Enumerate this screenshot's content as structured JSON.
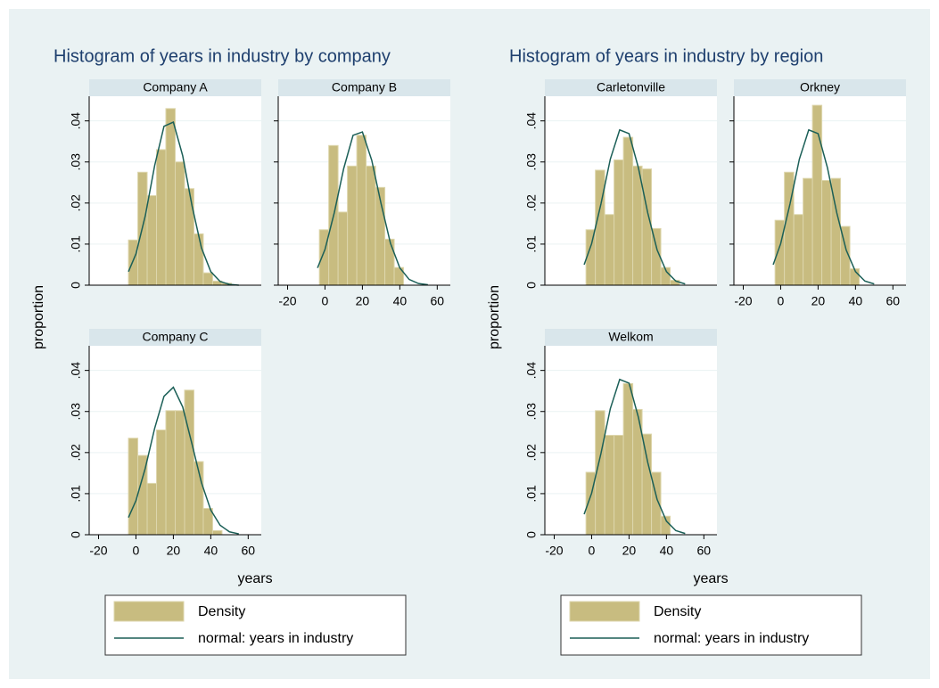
{
  "chart_data": [
    {
      "type": "histogram",
      "title": "Histogram of years in industry by company",
      "xlabel": "years",
      "ylabel": "proportion",
      "legend": [
        "Density",
        "normal: years in industry"
      ],
      "bar_color": "#c8bc80",
      "line_color": "#1b5f57",
      "xlim": [
        -25,
        67
      ],
      "ylim": [
        0,
        0.046
      ],
      "xticks": [
        -20,
        0,
        20,
        40,
        60
      ],
      "yticks": [
        0,
        {
          "value": 0.01,
          "label": ".01"
        },
        {
          "value": 0.02,
          "label": ".02"
        },
        {
          "value": 0.03,
          "label": ".03"
        },
        {
          "value": 0.04,
          "label": ".04"
        }
      ],
      "grid": true,
      "panels": [
        {
          "name": "Company A",
          "bins": [
            -4,
            1,
            6,
            11,
            16,
            21,
            26,
            31,
            36,
            41,
            46,
            51
          ],
          "values": [
            0.011,
            0.0275,
            0.0218,
            0.033,
            0.043,
            0.03,
            0.0235,
            0.0125,
            0.003,
            0.001,
            0.0005
          ],
          "curve": {
            "x": [
              -4,
              0,
              5,
              10,
              15,
              20,
              25,
              30,
              35,
              40,
              45,
              50,
              55
            ],
            "values": [
              0.0033,
              0.0076,
              0.0169,
              0.0291,
              0.0387,
              0.0397,
              0.0315,
              0.0193,
              0.0091,
              0.0033,
              0.0009,
              0.0002,
              0
            ]
          }
        },
        {
          "name": "Company B",
          "bins": [
            -3,
            2,
            7,
            12,
            17,
            22,
            27,
            32,
            37,
            42
          ],
          "values": [
            0.0135,
            0.034,
            0.0178,
            0.029,
            0.0365,
            0.029,
            0.0238,
            0.0112,
            0.0043
          ],
          "curve": {
            "x": [
              -4,
              0,
              5,
              10,
              15,
              20,
              25,
              30,
              35,
              40,
              45,
              50,
              55
            ],
            "values": [
              0.0042,
              0.0087,
              0.0177,
              0.0284,
              0.0365,
              0.0373,
              0.0304,
              0.0198,
              0.0102,
              0.0042,
              0.0014,
              0.0004,
              0.0001
            ]
          }
        },
        {
          "name": "Company C",
          "bins": [
            -4,
            1,
            6,
            11,
            16,
            21,
            26,
            31,
            36,
            41,
            46
          ],
          "values": [
            0.0235,
            0.0193,
            0.0125,
            0.0255,
            0.0302,
            0.0302,
            0.0352,
            0.0178,
            0.0064,
            0.001
          ],
          "curve": {
            "x": [
              -4,
              0,
              5,
              10,
              15,
              20,
              25,
              30,
              35,
              40,
              45,
              50,
              55
            ],
            "values": [
              0.0042,
              0.0083,
              0.0162,
              0.0259,
              0.0337,
              0.0359,
              0.0311,
              0.022,
              0.0127,
              0.006,
              0.0023,
              0.0007,
              0.0002
            ]
          }
        }
      ]
    },
    {
      "type": "histogram",
      "title": "Histogram of years in industry by region",
      "xlabel": "years",
      "ylabel": "proportion",
      "legend": [
        "Density",
        "normal: years in industry"
      ],
      "bar_color": "#c8bc80",
      "line_color": "#1b5f57",
      "xlim": [
        -25,
        67
      ],
      "ylim": [
        0,
        0.046
      ],
      "xticks": [
        -20,
        0,
        20,
        40,
        60
      ],
      "yticks": [
        0,
        {
          "value": 0.01,
          "label": ".01"
        },
        {
          "value": 0.02,
          "label": ".02"
        },
        {
          "value": 0.03,
          "label": ".03"
        },
        {
          "value": 0.04,
          "label": ".04"
        }
      ],
      "grid": true,
      "panels": [
        {
          "name": "Carletonville",
          "bins": [
            -3,
            2,
            7,
            12,
            17,
            22,
            27,
            32,
            37,
            42,
            47
          ],
          "values": [
            0.0135,
            0.028,
            0.0172,
            0.0305,
            0.036,
            0.029,
            0.0283,
            0.0138,
            0.0043,
            0.0012
          ],
          "curve": {
            "x": [
              -4,
              0,
              5,
              10,
              15,
              20,
              25,
              30,
              35,
              40,
              45,
              50
            ],
            "values": [
              0.005,
              0.0101,
              0.0198,
              0.0307,
              0.0378,
              0.0369,
              0.0286,
              0.0176,
              0.0086,
              0.0033,
              0.001,
              0.0003
            ]
          }
        },
        {
          "name": "Orkney",
          "bins": [
            -3,
            2,
            7,
            12,
            17,
            22,
            27,
            32,
            37,
            42
          ],
          "values": [
            0.0158,
            0.0275,
            0.0172,
            0.026,
            0.0438,
            0.0255,
            0.026,
            0.0143,
            0.004
          ],
          "curve": {
            "x": [
              -4,
              0,
              5,
              10,
              15,
              20,
              25,
              30,
              35,
              40,
              45,
              50
            ],
            "values": [
              0.005,
              0.0101,
              0.0198,
              0.0307,
              0.0378,
              0.0369,
              0.0286,
              0.0176,
              0.0086,
              0.0033,
              0.001,
              0.0003
            ]
          }
        },
        {
          "name": "Welkom",
          "bins": [
            -3,
            2,
            7,
            12,
            17,
            22,
            27,
            32,
            37,
            42
          ],
          "values": [
            0.0152,
            0.0302,
            0.0242,
            0.0242,
            0.0368,
            0.0305,
            0.0245,
            0.0152,
            0.0045
          ],
          "curve": {
            "x": [
              -4,
              0,
              5,
              10,
              15,
              20,
              25,
              30,
              35,
              40,
              45,
              50
            ],
            "values": [
              0.005,
              0.0101,
              0.0198,
              0.0307,
              0.0378,
              0.0369,
              0.0286,
              0.0176,
              0.0086,
              0.0033,
              0.001,
              0.0003
            ]
          }
        }
      ]
    }
  ]
}
